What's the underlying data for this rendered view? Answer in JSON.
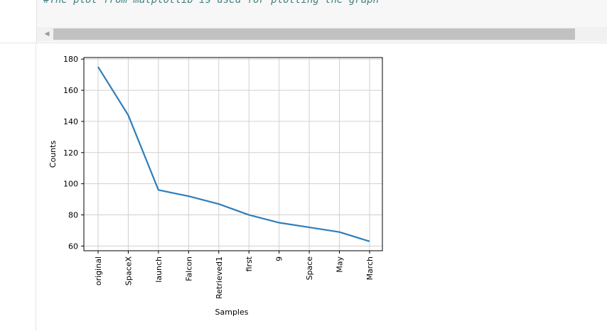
{
  "code_cell": {
    "comment": "#The plot from matplotlib is used for plotting the graph",
    "scroll_arrow": "◀"
  },
  "chart_data": {
    "type": "line",
    "title": "",
    "xlabel": "Samples",
    "ylabel": "Counts",
    "categories": [
      "original",
      "SpaceX",
      "launch",
      "Falcon",
      "Retrieved1",
      "first",
      "9",
      "Space",
      "May",
      "March"
    ],
    "values": [
      175,
      144,
      96,
      92,
      87,
      80,
      75,
      72,
      69,
      63
    ],
    "ylim": [
      57,
      181
    ],
    "yticks": [
      60,
      80,
      100,
      120,
      140,
      160,
      180
    ],
    "grid": true,
    "line_color": "#2e7ebc"
  }
}
